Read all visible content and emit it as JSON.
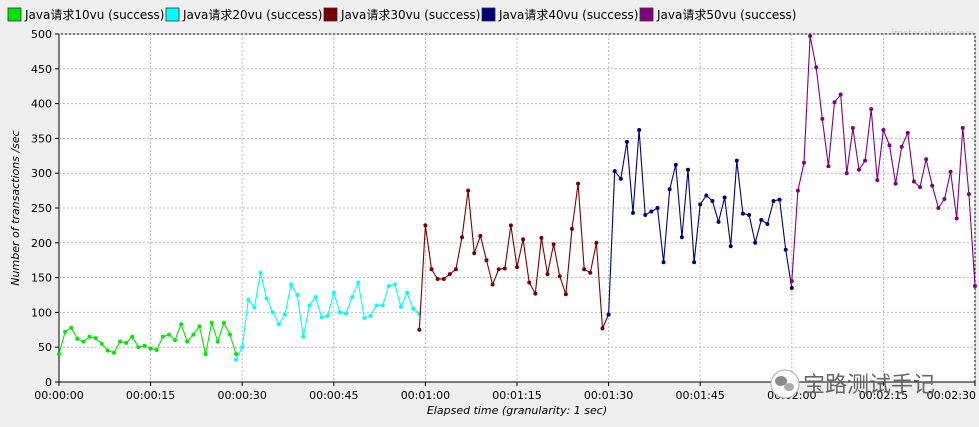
{
  "watermark": "jmeter-plugins.org",
  "overlay_caption": "宝路测试手记",
  "chart_data": {
    "type": "line",
    "title": "",
    "xlabel": "Elapsed time (granularity: 1 sec)",
    "ylabel": "Number of transactions /sec",
    "xlim": [
      0,
      150
    ],
    "ylim": [
      0,
      500
    ],
    "x_ticks": [
      {
        "value": 0,
        "label": "00:00:00"
      },
      {
        "value": 15,
        "label": "00:00:15"
      },
      {
        "value": 30,
        "label": "00:00:30"
      },
      {
        "value": 45,
        "label": "00:00:45"
      },
      {
        "value": 60,
        "label": "00:01:00"
      },
      {
        "value": 75,
        "label": "00:01:15"
      },
      {
        "value": 90,
        "label": "00:01:30"
      },
      {
        "value": 105,
        "label": "00:01:45"
      },
      {
        "value": 120,
        "label": "00:02:00"
      },
      {
        "value": 135,
        "label": "00:02:15"
      },
      {
        "value": 150,
        "label": "00:02:30"
      }
    ],
    "y_ticks": [
      0,
      50,
      100,
      150,
      200,
      250,
      300,
      350,
      400,
      450,
      500
    ],
    "grid": true,
    "legend_position": "top",
    "series": [
      {
        "name": "Java请求10vu (success)",
        "color": "#00e600",
        "x": [
          0,
          1,
          2,
          3,
          4,
          5,
          6,
          7,
          8,
          9,
          10,
          11,
          12,
          13,
          14,
          15,
          16,
          17,
          18,
          19,
          20,
          21,
          22,
          23,
          24,
          25,
          26,
          27,
          28,
          29
        ],
        "y": [
          40,
          72,
          78,
          62,
          58,
          65,
          63,
          55,
          45,
          42,
          58,
          56,
          65,
          50,
          52,
          48,
          46,
          65,
          68,
          60,
          83,
          58,
          68,
          80,
          40,
          85,
          58,
          85,
          68,
          40
        ]
      },
      {
        "name": "Java请求20vu (success)",
        "color": "#00ffff",
        "x": [
          29,
          30,
          31,
          32,
          33,
          34,
          35,
          36,
          37,
          38,
          39,
          40,
          41,
          42,
          43,
          44,
          45,
          46,
          47,
          48,
          49,
          50,
          51,
          52,
          53,
          54,
          55,
          56,
          57,
          58,
          59
        ],
        "y": [
          32,
          50,
          118,
          107,
          157,
          120,
          100,
          83,
          97,
          140,
          125,
          65,
          110,
          122,
          93,
          95,
          128,
          100,
          98,
          122,
          143,
          92,
          95,
          110,
          110,
          138,
          140,
          108,
          128,
          105,
          98
        ]
      },
      {
        "name": "Java请求30vu (success)",
        "color": "#7a0000",
        "x": [
          59,
          60,
          61,
          62,
          63,
          64,
          65,
          66,
          67,
          68,
          69,
          70,
          71,
          72,
          73,
          74,
          75,
          76,
          77,
          78,
          79,
          80,
          81,
          82,
          83,
          84,
          85,
          86,
          87,
          88,
          89,
          90
        ],
        "y": [
          75,
          225,
          162,
          148,
          148,
          155,
          162,
          208,
          275,
          185,
          210,
          175,
          140,
          162,
          163,
          225,
          165,
          205,
          143,
          127,
          207,
          155,
          198,
          152,
          126,
          220,
          285,
          162,
          157,
          200,
          77,
          97
        ]
      },
      {
        "name": "Java请求40vu (success)",
        "color": "#00007a",
        "x": [
          90,
          91,
          92,
          93,
          94,
          95,
          96,
          97,
          98,
          99,
          100,
          101,
          102,
          103,
          104,
          105,
          106,
          107,
          108,
          109,
          110,
          111,
          112,
          113,
          114,
          115,
          116,
          117,
          118,
          119,
          120
        ],
        "y": [
          97,
          303,
          292,
          345,
          243,
          362,
          240,
          245,
          250,
          172,
          277,
          312,
          208,
          305,
          172,
          255,
          268,
          260,
          230,
          265,
          195,
          318,
          242,
          240,
          200,
          233,
          227,
          260,
          262,
          190,
          135
        ]
      },
      {
        "name": "Java请求50vu (success)",
        "color": "#800080",
        "x": [
          120,
          121,
          122,
          123,
          124,
          125,
          126,
          127,
          128,
          129,
          130,
          131,
          132,
          133,
          134,
          135,
          136,
          137,
          138,
          139,
          140,
          141,
          142,
          143,
          144,
          145,
          146,
          147,
          148,
          149,
          150
        ],
        "y": [
          145,
          275,
          315,
          497,
          452,
          378,
          310,
          402,
          413,
          300,
          365,
          305,
          318,
          392,
          290,
          362,
          340,
          285,
          338,
          358,
          288,
          280,
          320,
          282,
          250,
          263,
          302,
          235,
          365,
          270,
          138
        ]
      }
    ]
  }
}
